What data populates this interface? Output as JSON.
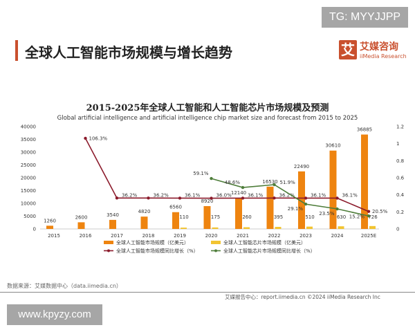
{
  "watermark_top": "TG: MYYJJPP",
  "page_title": "全球人工智能市场规模与增长趋势",
  "logo": {
    "mark": "艾",
    "cn": "艾媒咨询",
    "en": "iiMedia Research"
  },
  "footer": {
    "source": "数据来源：艾媒数据中心（data.iimedia.cn）",
    "report": "艾媒报告中心：report.iimedia.cn    ©2024 iiMedia Research Inc",
    "watermark": "www.kpyzy.com"
  },
  "chart_data": {
    "type": "bar",
    "title": "2015-2025年全球人工智能和人工智能芯片市场规模及预测",
    "subtitle": "Global artificial intelligence and artificial intelligence chip market size and forecast from 2015 to 2025",
    "categories": [
      "2015",
      "2016",
      "2017",
      "2018",
      "2019",
      "2020",
      "2021",
      "2022",
      "2023",
      "2024",
      "2025E"
    ],
    "ylim": [
      0,
      40000
    ],
    "yticks": [
      0,
      5000,
      10000,
      15000,
      20000,
      25000,
      30000,
      35000,
      40000
    ],
    "y2lim": [
      0,
      1.2
    ],
    "y2ticks": [
      "0",
      "0.2",
      "0.4",
      "0.6",
      "0.8",
      "1",
      "1.2"
    ],
    "series": [
      {
        "name": "全球人工智能市场规模（亿美元）",
        "type": "bar",
        "color": "#ee8410",
        "values": [
          1260,
          2600,
          3540,
          4820,
          6560,
          8920,
          12140,
          16530,
          22490,
          30610,
          36885
        ]
      },
      {
        "name": "全球人工智能芯片市场规模（亿美元）",
        "type": "bar",
        "color": "#f2c431",
        "values": [
          null,
          null,
          null,
          null,
          110,
          175,
          260,
          395,
          510,
          630,
          726
        ]
      },
      {
        "name": "全球人工智能市场规模同比增长（%）",
        "type": "line",
        "axis": "right",
        "color": "#8b1a2b",
        "values": [
          null,
          106.3,
          36.2,
          36.2,
          36.1,
          36.0,
          36.1,
          36.2,
          36.1,
          36.1,
          20.5
        ]
      },
      {
        "name": "全球人工智能芯片市场规模同比增长（%）",
        "type": "line",
        "axis": "right",
        "color": "#4e7d3a",
        "values": [
          null,
          null,
          null,
          null,
          null,
          59.1,
          48.6,
          51.9,
          29.1,
          23.5,
          15.2
        ]
      }
    ]
  }
}
